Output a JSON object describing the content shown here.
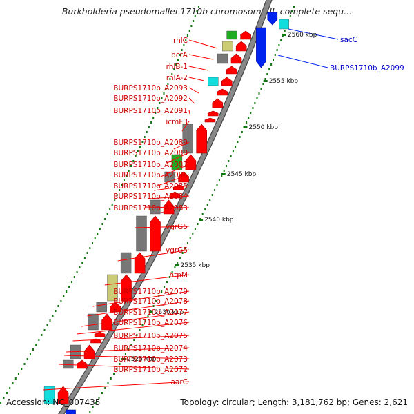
{
  "title": "Burkholderia pseudomallei 1710b chromosome II, complete sequ...",
  "footer": {
    "accession": "Accession: NC_007435",
    "topology": "Topology: circular; Length: 3,181,762 bp; Genes: 2,621"
  },
  "scale_labels": [
    "2560 kbp",
    "2555 kbp",
    "2550 kbp",
    "2545 kbp",
    "2540 kbp",
    "2535 kbp",
    "2530 kbp",
    "2525 kbp"
  ],
  "forward_labels": [
    "sacC",
    "BURPS1710b_A2099"
  ],
  "reverse_labels": [
    "rhlC",
    "bcrA",
    "rhlB-1",
    "rhlA-2",
    "BURPS1710b_A2093",
    "BURPS1710b_A2092",
    "BURPS1710b_A2091",
    "icmF3",
    "BURPS1710b_A2089",
    "BURPS1710b_A2088",
    "BURPS1710b_A2087",
    "BURPS1710b_A2086",
    "BURPS1710b_A2085",
    "BURPS1710b_A2084",
    "BURPS1710b_A2083",
    "vgrG5",
    "vgrG5",
    "htpM",
    "BURPS1710b_A2079",
    "BURPS1710b_A2078",
    "BURPS1710b_A2077",
    "BURPS1710b_A2076",
    "BURPS1710b_A2075",
    "BURPS1710b_A2074",
    "BURPS1710b_A2073",
    "BURPS1710b_A2072",
    "aarC"
  ],
  "colors": {
    "gene_reverse": "#ff0000",
    "gene_forward": "#0022ee",
    "cog_gray": "#777777",
    "cog_green": "#22aa22",
    "cog_cyan": "#11dddd",
    "cog_olive": "#cccc77",
    "label_red": "#cc0000",
    "label_blue": "#0000cc",
    "tick_green": "#117711",
    "backbone": "#888888"
  }
}
